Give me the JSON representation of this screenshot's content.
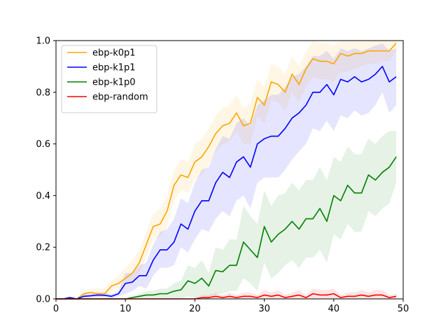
{
  "chart_data": {
    "type": "line",
    "title": "",
    "xlabel": "",
    "ylabel": "",
    "xlim": [
      0,
      50
    ],
    "ylim": [
      0,
      1.0
    ],
    "x_ticks": [
      "0",
      "10",
      "20",
      "30",
      "40",
      "50"
    ],
    "y_ticks": [
      "0.0",
      "0.2",
      "0.4",
      "0.6",
      "0.8",
      "1.0"
    ],
    "grid": false,
    "legend_position": "top-left",
    "x": [
      0,
      1,
      2,
      3,
      4,
      5,
      6,
      7,
      8,
      9,
      10,
      11,
      12,
      13,
      14,
      15,
      16,
      17,
      18,
      19,
      20,
      21,
      22,
      23,
      24,
      25,
      26,
      27,
      28,
      29,
      30,
      31,
      32,
      33,
      34,
      35,
      36,
      37,
      38,
      39,
      40,
      41,
      42,
      43,
      44,
      45,
      46,
      47,
      48,
      49
    ],
    "series": [
      {
        "name": "ebp-k0p1",
        "color": "#ffa500",
        "values": [
          0,
          0,
          0,
          0,
          0.02,
          0.025,
          0.02,
          0.02,
          0.05,
          0.06,
          0.08,
          0.1,
          0.14,
          0.21,
          0.28,
          0.29,
          0.34,
          0.44,
          0.48,
          0.47,
          0.53,
          0.55,
          0.59,
          0.64,
          0.67,
          0.68,
          0.72,
          0.67,
          0.68,
          0.78,
          0.75,
          0.84,
          0.83,
          0.8,
          0.87,
          0.83,
          0.89,
          0.93,
          0.92,
          0.92,
          0.91,
          0.95,
          0.94,
          0.95,
          0.95,
          0.96,
          0.96,
          0.96,
          0.96,
          0.99
        ],
        "upper": [
          0,
          0,
          0,
          0,
          0.03,
          0.04,
          0.04,
          0.04,
          0.07,
          0.09,
          0.12,
          0.15,
          0.19,
          0.26,
          0.33,
          0.35,
          0.4,
          0.5,
          0.54,
          0.53,
          0.6,
          0.62,
          0.66,
          0.71,
          0.74,
          0.75,
          0.79,
          0.74,
          0.76,
          0.85,
          0.82,
          0.91,
          0.9,
          0.87,
          0.94,
          0.9,
          0.96,
          1.0,
          0.99,
          0.99,
          0.98,
          1.0,
          1.0,
          1.0,
          1.0,
          1.0,
          1.0,
          1.0,
          1.0,
          1.0
        ],
        "lower": [
          0,
          0,
          0,
          0,
          0.01,
          0.01,
          0.01,
          0.01,
          0.03,
          0.04,
          0.05,
          0.06,
          0.1,
          0.16,
          0.23,
          0.24,
          0.28,
          0.38,
          0.42,
          0.41,
          0.46,
          0.48,
          0.52,
          0.57,
          0.6,
          0.61,
          0.65,
          0.6,
          0.6,
          0.71,
          0.68,
          0.77,
          0.76,
          0.73,
          0.8,
          0.76,
          0.82,
          0.86,
          0.85,
          0.85,
          0.84,
          0.88,
          0.88,
          0.89,
          0.9,
          0.91,
          0.91,
          0.92,
          0.92,
          0.96
        ]
      },
      {
        "name": "ebp-k1p1",
        "color": "#0000ff",
        "values": [
          0,
          0,
          0.005,
          0,
          0.01,
          0.012,
          0.015,
          0.014,
          0.01,
          0.02,
          0.06,
          0.065,
          0.09,
          0.09,
          0.15,
          0.19,
          0.19,
          0.22,
          0.29,
          0.27,
          0.34,
          0.38,
          0.38,
          0.45,
          0.49,
          0.47,
          0.53,
          0.55,
          0.51,
          0.6,
          0.62,
          0.63,
          0.63,
          0.66,
          0.7,
          0.72,
          0.75,
          0.8,
          0.8,
          0.83,
          0.79,
          0.85,
          0.84,
          0.86,
          0.84,
          0.85,
          0.87,
          0.9,
          0.84,
          0.86
        ],
        "upper": [
          0,
          0,
          0.01,
          0,
          0.02,
          0.02,
          0.025,
          0.025,
          0.02,
          0.03,
          0.1,
          0.1,
          0.13,
          0.14,
          0.21,
          0.26,
          0.27,
          0.31,
          0.39,
          0.37,
          0.45,
          0.5,
          0.51,
          0.58,
          0.63,
          0.62,
          0.68,
          0.7,
          0.67,
          0.75,
          0.77,
          0.79,
          0.79,
          0.82,
          0.86,
          0.87,
          0.9,
          0.94,
          0.94,
          0.96,
          0.93,
          0.97,
          0.96,
          0.97,
          0.96,
          0.97,
          0.98,
          0.99,
          0.96,
          0.97
        ],
        "lower": [
          0,
          0,
          0,
          0,
          0,
          0.005,
          0.005,
          0.005,
          0.002,
          0.01,
          0.02,
          0.03,
          0.05,
          0.04,
          0.09,
          0.12,
          0.12,
          0.13,
          0.2,
          0.18,
          0.23,
          0.27,
          0.26,
          0.31,
          0.34,
          0.32,
          0.38,
          0.4,
          0.35,
          0.45,
          0.47,
          0.47,
          0.47,
          0.5,
          0.54,
          0.57,
          0.6,
          0.66,
          0.65,
          0.69,
          0.65,
          0.71,
          0.7,
          0.73,
          0.71,
          0.72,
          0.75,
          0.8,
          0.72,
          0.75
        ]
      },
      {
        "name": "ebp-k1p0",
        "color": "#008000",
        "values": [
          0,
          0,
          0,
          0,
          0,
          0,
          0,
          0,
          0,
          0,
          0,
          0.005,
          0.01,
          0.015,
          0.015,
          0.02,
          0.02,
          0.03,
          0.035,
          0.07,
          0.06,
          0.08,
          0.05,
          0.11,
          0.105,
          0.13,
          0.13,
          0.22,
          0.19,
          0.16,
          0.28,
          0.22,
          0.25,
          0.27,
          0.3,
          0.27,
          0.31,
          0.31,
          0.35,
          0.3,
          0.4,
          0.38,
          0.44,
          0.41,
          0.41,
          0.48,
          0.46,
          0.49,
          0.51,
          0.55
        ],
        "upper": [
          0,
          0,
          0,
          0,
          0,
          0,
          0,
          0,
          0,
          0,
          0,
          0.01,
          0.02,
          0.03,
          0.03,
          0.04,
          0.04,
          0.06,
          0.07,
          0.13,
          0.12,
          0.15,
          0.1,
          0.2,
          0.19,
          0.23,
          0.23,
          0.36,
          0.32,
          0.29,
          0.42,
          0.36,
          0.4,
          0.41,
          0.45,
          0.42,
          0.46,
          0.46,
          0.51,
          0.46,
          0.55,
          0.53,
          0.59,
          0.56,
          0.56,
          0.62,
          0.6,
          0.63,
          0.65,
          0.65
        ],
        "lower": [
          0,
          0,
          0,
          0,
          0,
          0,
          0,
          0,
          0,
          0,
          0,
          0,
          0,
          0,
          0,
          0,
          0,
          0,
          0,
          0.01,
          0.005,
          0.01,
          0,
          0.02,
          0.02,
          0.03,
          0.03,
          0.08,
          0.06,
          0.03,
          0.14,
          0.08,
          0.1,
          0.13,
          0.15,
          0.12,
          0.16,
          0.16,
          0.19,
          0.14,
          0.25,
          0.23,
          0.29,
          0.26,
          0.26,
          0.34,
          0.32,
          0.35,
          0.37,
          0.45
        ]
      },
      {
        "name": "ebp-random",
        "color": "#ff0000",
        "values": [
          0,
          0,
          0,
          0,
          0,
          0,
          0,
          0,
          0,
          0,
          0,
          0,
          0,
          0,
          0,
          0,
          0,
          0,
          0,
          0,
          0,
          0.005,
          0.005,
          0.01,
          0.005,
          0.01,
          0.005,
          0.01,
          0.01,
          0.005,
          0.015,
          0.01,
          0.015,
          0.005,
          0.01,
          0.015,
          0.005,
          0.02,
          0.015,
          0.015,
          0.02,
          0.005,
          0.01,
          0.01,
          0.015,
          0.01,
          0.015,
          0.015,
          0.005,
          0.01
        ],
        "upper": [
          0,
          0,
          0,
          0,
          0,
          0,
          0,
          0,
          0,
          0,
          0,
          0,
          0,
          0,
          0,
          0,
          0,
          0,
          0,
          0,
          0.005,
          0.015,
          0.015,
          0.025,
          0.015,
          0.025,
          0.015,
          0.025,
          0.025,
          0.015,
          0.035,
          0.025,
          0.035,
          0.015,
          0.025,
          0.035,
          0.015,
          0.04,
          0.035,
          0.035,
          0.04,
          0.015,
          0.025,
          0.025,
          0.035,
          0.025,
          0.035,
          0.035,
          0.015,
          0.02
        ],
        "lower": [
          0,
          0,
          0,
          0,
          0,
          0,
          0,
          0,
          0,
          0,
          0,
          0,
          0,
          0,
          0,
          0,
          0,
          0,
          0,
          0,
          0,
          0,
          0,
          0,
          0,
          0,
          0,
          0,
          0,
          0,
          0,
          0,
          0,
          0,
          0,
          0,
          0,
          0,
          0,
          0,
          0,
          0,
          0,
          0,
          0,
          0,
          0,
          0,
          0,
          0
        ]
      }
    ]
  }
}
